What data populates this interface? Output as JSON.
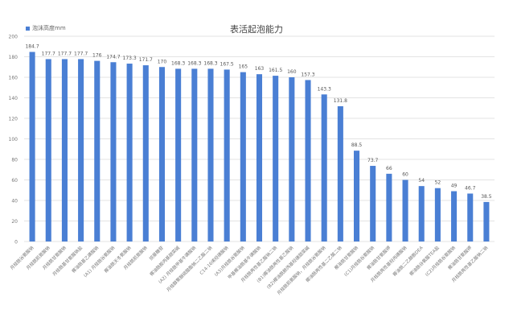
{
  "chart_data": {
    "type": "bar",
    "title": "表活起泡能力",
    "legend_position": "top-left",
    "grid": true,
    "color": "#4a7fd4",
    "ylim": [
      0,
      200
    ],
    "yticks": [
      0,
      20,
      40,
      60,
      80,
      100,
      120,
      140,
      160,
      180,
      200
    ],
    "series": [
      {
        "name": "泡沫高度mm",
        "values": [
          184.7,
          177.7,
          177.7,
          177.7,
          176,
          174.7,
          173.3,
          171.7,
          170,
          168.3,
          168.3,
          168.3,
          167.5,
          165,
          163,
          161.5,
          160,
          157.3,
          143.3,
          131.8,
          88.5,
          73.7,
          66,
          60,
          54,
          52,
          49,
          46.7,
          38.5
        ]
      }
    ],
    "categories": [
      "月桂酰谷氨酸钠",
      "月桂酰肌氨酸钠",
      "月桂酰甘氨酸钠",
      "月桂酰基甘氨酸钠盐",
      "椰油酰基乙磺酸钠",
      "(A1) 月桂酰谷氨酸钠",
      "椰油酰天冬氨酸钠",
      "月桂酰肌氨酸钠",
      "烷基糖苷",
      "椰油酰胺丙基甜菜碱",
      "(A2) 月桂酰甲基牛磺酸钠",
      "月桂醇聚醚硫酸酯钠二乙酸二钠",
      "C14-16烯烃磺酸钠",
      "(A3)月桂酰谷氨酸钠",
      "甲基椰油酰基牛磺酸钠",
      "月桂酰两性基乙酸钠二钠",
      "(B1)椰油酰两性基乙酸钠",
      "(B2)椰油酰胺丙基羟磺甜菜碱",
      "月桂酰肌氨酸钠，月桂酰谷氨酸钠",
      "椰油酰两性基二乙酸二钠",
      "椰油酰甘氨酸钠",
      "(C1)月桂酰谷氨酸钠",
      "椰油酰甘氨酸钾",
      "月桂酰两性基羟丙磺酸钠",
      "椰油酰二乙醇胺DEA",
      "椰油酰谷氨酸TEA盐",
      "(C2)月桂酰谷氨酸钠",
      "椰油酰甘氨酸钾",
      "月桂酰两性基乙酸钠二钠"
    ]
  }
}
